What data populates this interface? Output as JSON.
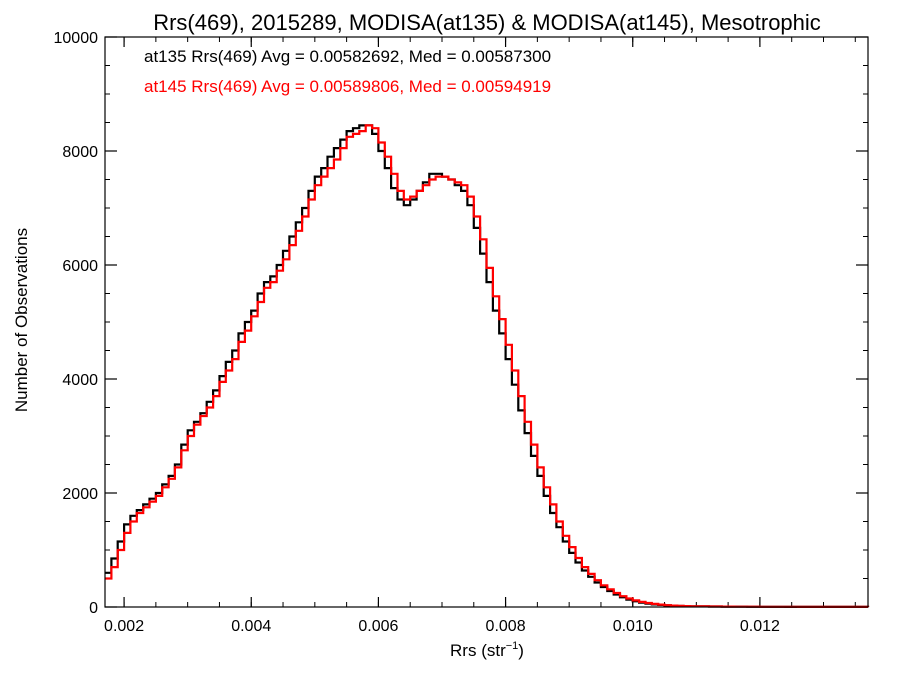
{
  "chart_data": {
    "type": "line",
    "title": "Rrs(469), 2015289, MODISA(at135) & MODISA(at145), Mesotrophic",
    "xlabel_main": "Rrs (str",
    "xlabel_sup": "−1",
    "xlabel_close": ")",
    "ylabel": "Number of Observations",
    "xlim": [
      0.0017,
      0.0137
    ],
    "ylim": [
      0,
      10000
    ],
    "x_ticks": [
      0.002,
      0.004,
      0.006,
      0.008,
      0.01,
      0.012
    ],
    "x_tick_labels": [
      "0.002",
      "0.004",
      "0.006",
      "0.008",
      "0.010",
      "0.012"
    ],
    "y_ticks": [
      0,
      2000,
      4000,
      6000,
      8000,
      10000
    ],
    "y_tick_labels": [
      "0",
      "2000",
      "4000",
      "6000",
      "8000",
      "10000"
    ],
    "x_minor_step": 0.0005,
    "y_minor_step": 500,
    "grid": false,
    "series": [
      {
        "color": "#000000",
        "annotation": "at135 Rrs(469) Avg = 0.00582692, Med = 0.00587300",
        "points": [
          [
            0.0017,
            600
          ],
          [
            0.0018,
            850
          ],
          [
            0.0019,
            1150
          ],
          [
            0.002,
            1450
          ],
          [
            0.0021,
            1600
          ],
          [
            0.0022,
            1700
          ],
          [
            0.0023,
            1800
          ],
          [
            0.0024,
            1900
          ],
          [
            0.0025,
            2000
          ],
          [
            0.0026,
            2150
          ],
          [
            0.0027,
            2300
          ],
          [
            0.0028,
            2500
          ],
          [
            0.0029,
            2850
          ],
          [
            0.003,
            3100
          ],
          [
            0.0031,
            3250
          ],
          [
            0.0032,
            3400
          ],
          [
            0.0033,
            3600
          ],
          [
            0.0034,
            3800
          ],
          [
            0.0035,
            4050
          ],
          [
            0.0036,
            4300
          ],
          [
            0.0037,
            4500
          ],
          [
            0.0038,
            4800
          ],
          [
            0.0039,
            5000
          ],
          [
            0.004,
            5200
          ],
          [
            0.0041,
            5500
          ],
          [
            0.0042,
            5700
          ],
          [
            0.0043,
            5800
          ],
          [
            0.0044,
            6000
          ],
          [
            0.0045,
            6250
          ],
          [
            0.0046,
            6500
          ],
          [
            0.0047,
            6750
          ],
          [
            0.0048,
            7000
          ],
          [
            0.0049,
            7300
          ],
          [
            0.005,
            7550
          ],
          [
            0.0051,
            7700
          ],
          [
            0.0052,
            7900
          ],
          [
            0.0053,
            8050
          ],
          [
            0.0054,
            8200
          ],
          [
            0.0055,
            8350
          ],
          [
            0.0056,
            8400
          ],
          [
            0.0057,
            8450
          ],
          [
            0.0058,
            8450
          ],
          [
            0.0059,
            8300
          ],
          [
            0.006,
            8000
          ],
          [
            0.0061,
            7700
          ],
          [
            0.0062,
            7350
          ],
          [
            0.0063,
            7150
          ],
          [
            0.0064,
            7050
          ],
          [
            0.0065,
            7150
          ],
          [
            0.0066,
            7300
          ],
          [
            0.0067,
            7450
          ],
          [
            0.0068,
            7600
          ],
          [
            0.0069,
            7600
          ],
          [
            0.007,
            7550
          ],
          [
            0.0071,
            7500
          ],
          [
            0.0072,
            7400
          ],
          [
            0.0073,
            7300
          ],
          [
            0.0074,
            7050
          ],
          [
            0.0075,
            6650
          ],
          [
            0.0076,
            6200
          ],
          [
            0.0077,
            5700
          ],
          [
            0.0078,
            5200
          ],
          [
            0.0079,
            4800
          ],
          [
            0.008,
            4350
          ],
          [
            0.0081,
            3900
          ],
          [
            0.0082,
            3450
          ],
          [
            0.0083,
            3050
          ],
          [
            0.0084,
            2650
          ],
          [
            0.0085,
            2300
          ],
          [
            0.0086,
            1950
          ],
          [
            0.0087,
            1650
          ],
          [
            0.0088,
            1400
          ],
          [
            0.0089,
            1150
          ],
          [
            0.009,
            950
          ],
          [
            0.0091,
            780
          ],
          [
            0.0092,
            640
          ],
          [
            0.0093,
            530
          ],
          [
            0.0094,
            430
          ],
          [
            0.0095,
            350
          ],
          [
            0.0096,
            280
          ],
          [
            0.0097,
            220
          ],
          [
            0.0098,
            170
          ],
          [
            0.0099,
            130
          ],
          [
            0.01,
            100
          ],
          [
            0.0101,
            78
          ],
          [
            0.0102,
            60
          ],
          [
            0.0103,
            46
          ],
          [
            0.0104,
            36
          ],
          [
            0.0105,
            28
          ],
          [
            0.0106,
            22
          ],
          [
            0.0107,
            17
          ],
          [
            0.0108,
            14
          ],
          [
            0.0109,
            12
          ],
          [
            0.011,
            10
          ],
          [
            0.0112,
            8
          ],
          [
            0.0114,
            6
          ],
          [
            0.0116,
            5
          ],
          [
            0.0118,
            4
          ],
          [
            0.012,
            3
          ],
          [
            0.0122,
            3
          ],
          [
            0.0124,
            2
          ],
          [
            0.0126,
            2
          ],
          [
            0.0128,
            1
          ],
          [
            0.013,
            1
          ],
          [
            0.0134,
            1
          ],
          [
            0.0137,
            0
          ]
        ]
      },
      {
        "color": "#ff0000",
        "annotation": "at145 Rrs(469) Avg = 0.00589806, Med = 0.00594919",
        "points": [
          [
            0.0017,
            500
          ],
          [
            0.0018,
            700
          ],
          [
            0.0019,
            1000
          ],
          [
            0.002,
            1300
          ],
          [
            0.0021,
            1500
          ],
          [
            0.0022,
            1650
          ],
          [
            0.0023,
            1750
          ],
          [
            0.0024,
            1850
          ],
          [
            0.0025,
            1950
          ],
          [
            0.0026,
            2100
          ],
          [
            0.0027,
            2250
          ],
          [
            0.0028,
            2450
          ],
          [
            0.0029,
            2750
          ],
          [
            0.003,
            3000
          ],
          [
            0.0031,
            3200
          ],
          [
            0.0032,
            3350
          ],
          [
            0.0033,
            3500
          ],
          [
            0.0034,
            3700
          ],
          [
            0.0035,
            3950
          ],
          [
            0.0036,
            4150
          ],
          [
            0.0037,
            4350
          ],
          [
            0.0038,
            4650
          ],
          [
            0.0039,
            4850
          ],
          [
            0.004,
            5100
          ],
          [
            0.0041,
            5350
          ],
          [
            0.0042,
            5600
          ],
          [
            0.0043,
            5700
          ],
          [
            0.0044,
            5900
          ],
          [
            0.0045,
            6100
          ],
          [
            0.0046,
            6350
          ],
          [
            0.0047,
            6600
          ],
          [
            0.0048,
            6850
          ],
          [
            0.0049,
            7150
          ],
          [
            0.005,
            7400
          ],
          [
            0.0051,
            7550
          ],
          [
            0.0052,
            7700
          ],
          [
            0.0053,
            7850
          ],
          [
            0.0054,
            8050
          ],
          [
            0.0055,
            8250
          ],
          [
            0.0056,
            8300
          ],
          [
            0.0057,
            8350
          ],
          [
            0.0058,
            8450
          ],
          [
            0.0059,
            8400
          ],
          [
            0.006,
            8150
          ],
          [
            0.0061,
            7900
          ],
          [
            0.0062,
            7600
          ],
          [
            0.0063,
            7300
          ],
          [
            0.0064,
            7150
          ],
          [
            0.0065,
            7200
          ],
          [
            0.0066,
            7300
          ],
          [
            0.0067,
            7400
          ],
          [
            0.0068,
            7500
          ],
          [
            0.0069,
            7550
          ],
          [
            0.007,
            7550
          ],
          [
            0.0071,
            7500
          ],
          [
            0.0072,
            7450
          ],
          [
            0.0073,
            7400
          ],
          [
            0.0074,
            7200
          ],
          [
            0.0075,
            6850
          ],
          [
            0.0076,
            6450
          ],
          [
            0.0077,
            5950
          ],
          [
            0.0078,
            5450
          ],
          [
            0.0079,
            5050
          ],
          [
            0.008,
            4600
          ],
          [
            0.0081,
            4150
          ],
          [
            0.0082,
            3700
          ],
          [
            0.0083,
            3250
          ],
          [
            0.0084,
            2850
          ],
          [
            0.0085,
            2450
          ],
          [
            0.0086,
            2100
          ],
          [
            0.0087,
            1800
          ],
          [
            0.0088,
            1500
          ],
          [
            0.0089,
            1250
          ],
          [
            0.009,
            1050
          ],
          [
            0.0091,
            860
          ],
          [
            0.0092,
            700
          ],
          [
            0.0093,
            580
          ],
          [
            0.0094,
            470
          ],
          [
            0.0095,
            380
          ],
          [
            0.0096,
            310
          ],
          [
            0.0097,
            245
          ],
          [
            0.0098,
            190
          ],
          [
            0.0099,
            150
          ],
          [
            0.01,
            115
          ],
          [
            0.0101,
            90
          ],
          [
            0.0102,
            70
          ],
          [
            0.0103,
            54
          ],
          [
            0.0104,
            42
          ],
          [
            0.0105,
            32
          ],
          [
            0.0106,
            25
          ],
          [
            0.0107,
            20
          ],
          [
            0.0108,
            16
          ],
          [
            0.0109,
            13
          ],
          [
            0.011,
            11
          ],
          [
            0.0112,
            9
          ],
          [
            0.0114,
            7
          ],
          [
            0.0116,
            6
          ],
          [
            0.0118,
            5
          ],
          [
            0.012,
            4
          ],
          [
            0.0122,
            3
          ],
          [
            0.0124,
            3
          ],
          [
            0.0126,
            2
          ],
          [
            0.0128,
            2
          ],
          [
            0.013,
            1
          ],
          [
            0.0134,
            1
          ],
          [
            0.0137,
            0
          ]
        ]
      }
    ]
  }
}
